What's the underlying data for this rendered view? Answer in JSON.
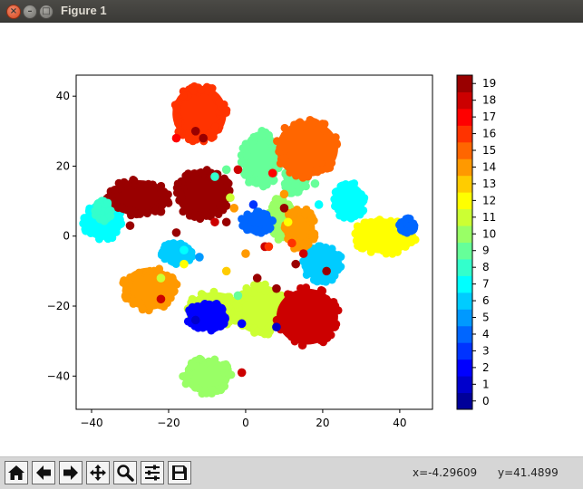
{
  "window": {
    "title": "Figure 1"
  },
  "toolbar": {
    "buttons": [
      "home-icon",
      "back-icon",
      "forward-icon",
      "pan-icon",
      "zoom-icon",
      "configure-icon",
      "save-icon"
    ],
    "coord_x": "x=-4.29609",
    "coord_y": "y=41.4899"
  },
  "chart_data": {
    "type": "scatter",
    "title": "",
    "xlabel": "",
    "ylabel": "",
    "xlim": [
      -44,
      48.5
    ],
    "ylim": [
      -49.5,
      46
    ],
    "xticks": [
      -40,
      -20,
      0,
      20,
      40
    ],
    "yticks": [
      -40,
      -20,
      0,
      20,
      40
    ],
    "colorbar": {
      "colormap": "jet",
      "min": 0,
      "max": 20,
      "ticks": [
        0,
        1,
        2,
        3,
        4,
        5,
        6,
        7,
        8,
        9,
        10,
        11,
        12,
        13,
        14,
        15,
        16,
        17,
        18,
        19
      ]
    },
    "clusters": [
      {
        "label": 7,
        "cx": -37,
        "cy": 4,
        "rx": 5,
        "ry": 5
      },
      {
        "label": 7,
        "cx": 27,
        "cy": 10,
        "rx": 4,
        "ry": 5
      },
      {
        "label": 6,
        "cx": 20,
        "cy": -8,
        "rx": 5,
        "ry": 5
      },
      {
        "label": 6,
        "cx": -18,
        "cy": -5,
        "rx": 4,
        "ry": 3
      },
      {
        "label": 9,
        "cx": 4,
        "cy": 22,
        "rx": 5,
        "ry": 8
      },
      {
        "label": 9,
        "cx": 13,
        "cy": 16,
        "rx": 3,
        "ry": 4
      },
      {
        "label": 10,
        "cx": -10,
        "cy": -40,
        "rx": 6,
        "ry": 5
      },
      {
        "label": 10,
        "cx": 9,
        "cy": 5,
        "rx": 3,
        "ry": 6
      },
      {
        "label": 11,
        "cx": -8,
        "cy": -21,
        "rx": 7,
        "ry": 5
      },
      {
        "label": 11,
        "cx": 4,
        "cy": -21,
        "rx": 7,
        "ry": 7
      },
      {
        "label": 12,
        "cx": 36,
        "cy": 0,
        "rx": 8,
        "ry": 5
      },
      {
        "label": 14,
        "cx": -25,
        "cy": -15,
        "rx": 7,
        "ry": 6
      },
      {
        "label": 14,
        "cx": 14,
        "cy": 2,
        "rx": 4,
        "ry": 6
      },
      {
        "label": 15,
        "cx": 16,
        "cy": 25,
        "rx": 8,
        "ry": 8
      },
      {
        "label": 16,
        "cx": -12,
        "cy": 35,
        "rx": 7,
        "ry": 8
      },
      {
        "label": 18,
        "cx": 16,
        "cy": -23,
        "rx": 8,
        "ry": 8
      },
      {
        "label": 19,
        "cx": -28,
        "cy": 11,
        "rx": 8,
        "ry": 5
      },
      {
        "label": 19,
        "cx": -11,
        "cy": 12,
        "rx": 7,
        "ry": 7
      },
      {
        "label": 2,
        "cx": -10,
        "cy": -23,
        "rx": 5,
        "ry": 4
      },
      {
        "label": 4,
        "cx": 3,
        "cy": 4,
        "rx": 4,
        "ry": 3
      },
      {
        "label": 4,
        "cx": 42,
        "cy": 3,
        "rx": 2,
        "ry": 2
      },
      {
        "label": 8,
        "cx": -37,
        "cy": 7,
        "rx": 2,
        "ry": 3
      }
    ],
    "scattered_points": [
      {
        "label": 19,
        "x": -13,
        "y": 30
      },
      {
        "label": 19,
        "x": -11,
        "y": 28
      },
      {
        "label": 19,
        "x": -5,
        "y": 4
      },
      {
        "label": 19,
        "x": 5,
        "y": -3
      },
      {
        "label": 19,
        "x": 10,
        "y": 8
      },
      {
        "label": 19,
        "x": 13,
        "y": -8
      },
      {
        "label": 19,
        "x": 21,
        "y": -10
      },
      {
        "label": 19,
        "x": -18,
        "y": 1
      },
      {
        "label": 19,
        "x": -22,
        "y": 7
      },
      {
        "label": 19,
        "x": 3,
        "y": -12
      },
      {
        "label": 19,
        "x": 8,
        "y": -15
      },
      {
        "label": 19,
        "x": -30,
        "y": 3
      },
      {
        "label": 18,
        "x": -2,
        "y": 19
      },
      {
        "label": 18,
        "x": -1,
        "y": -39
      },
      {
        "label": 18,
        "x": 5,
        "y": -3
      },
      {
        "label": 18,
        "x": -22,
        "y": -18
      },
      {
        "label": 18,
        "x": 15,
        "y": -5
      },
      {
        "label": 18,
        "x": -8,
        "y": 4
      },
      {
        "label": 17,
        "x": -18,
        "y": 28
      },
      {
        "label": 17,
        "x": 7,
        "y": 18
      },
      {
        "label": 16,
        "x": 6,
        "y": -3
      },
      {
        "label": 16,
        "x": 12,
        "y": -2
      },
      {
        "label": 14,
        "x": -3,
        "y": 8
      },
      {
        "label": 14,
        "x": 10,
        "y": 12
      },
      {
        "label": 14,
        "x": 0,
        "y": -5
      },
      {
        "label": 13,
        "x": -5,
        "y": -10
      },
      {
        "label": 12,
        "x": 11,
        "y": 4
      },
      {
        "label": 12,
        "x": -16,
        "y": -8
      },
      {
        "label": 11,
        "x": -22,
        "y": -12
      },
      {
        "label": 11,
        "x": -4,
        "y": 11
      },
      {
        "label": 9,
        "x": -5,
        "y": 19
      },
      {
        "label": 9,
        "x": 18,
        "y": 15
      },
      {
        "label": 9,
        "x": -2,
        "y": -17
      },
      {
        "label": 8,
        "x": -8,
        "y": 17
      },
      {
        "label": 7,
        "x": -16,
        "y": -4
      },
      {
        "label": 7,
        "x": 19,
        "y": 9
      },
      {
        "label": 5,
        "x": -12,
        "y": -6
      },
      {
        "label": 4,
        "x": 4,
        "y": 1
      },
      {
        "label": 3,
        "x": 2,
        "y": 9
      },
      {
        "label": 2,
        "x": -1,
        "y": -25
      },
      {
        "label": 1,
        "x": -13,
        "y": -24
      },
      {
        "label": 1,
        "x": 8,
        "y": -26
      }
    ]
  }
}
